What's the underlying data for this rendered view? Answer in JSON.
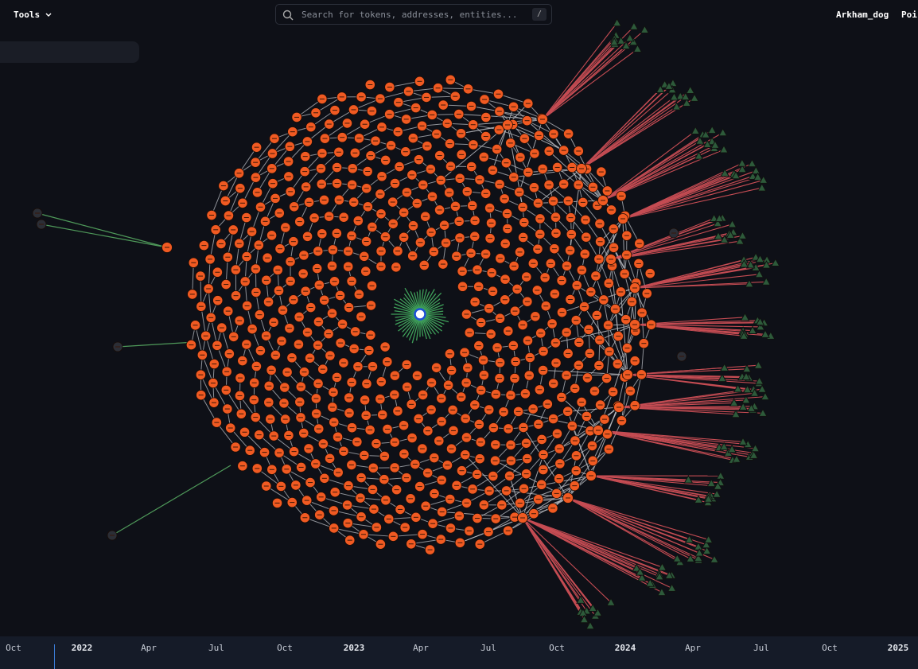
{
  "header": {
    "tools": "Tools",
    "search_placeholder": "Search for tokens, addresses, entities...",
    "search_shortcut": "/",
    "username": "Arkham_dog",
    "nav_cut": "Poi"
  },
  "timeline": {
    "labels": [
      "Oct",
      "2022",
      "Apr",
      "Jul",
      "Oct",
      "2023",
      "Apr",
      "Jul",
      "Oct",
      "2024",
      "Apr",
      "Jul",
      "Oct",
      "2025"
    ]
  }
}
